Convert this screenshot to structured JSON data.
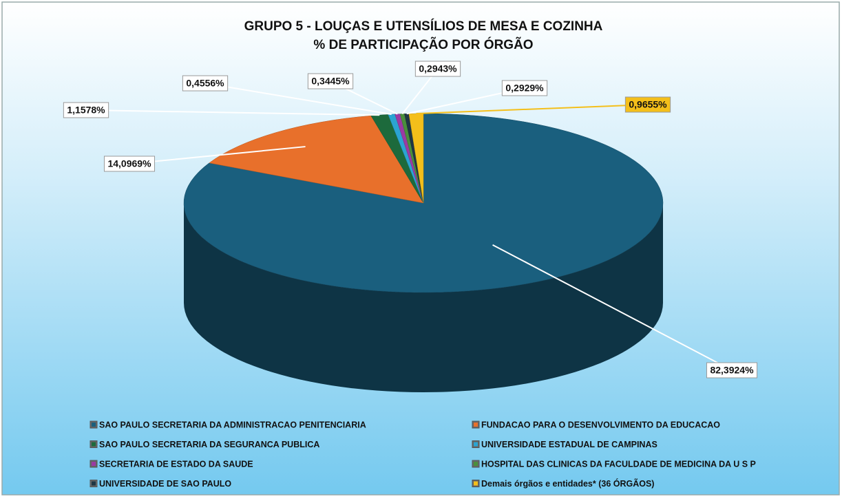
{
  "chart_data": {
    "type": "pie",
    "title": "GRUPO 5 - LOUÇAS E UTENSÍLIOS DE MESA E COZINHA",
    "subtitle": "% DE PARTICIPAÇÃO POR ÓRGÃO",
    "categories": [
      "SAO PAULO SECRETARIA DA ADMINISTRACAO PENITENCIARIA",
      "FUNDACAO PARA O DESENVOLVIMENTO DA EDUCACAO",
      "SAO PAULO SECRETARIA DA SEGURANCA PUBLICA",
      "UNIVERSIDADE ESTADUAL DE CAMPINAS",
      "SECRETARIA DE ESTADO DA SAUDE",
      "HOSPITAL DAS CLINICAS DA FACULDADE DE MEDICINA DA U S P",
      "UNIVERSIDADE DE SAO PAULO",
      "Demais órgãos e entidades* (36 ÓRGÃOS)"
    ],
    "values": [
      82.3924,
      14.0969,
      1.1578,
      0.4556,
      0.3445,
      0.2943,
      0.2929,
      0.9655
    ],
    "value_labels": [
      "82,3924%",
      "14,0969%",
      "1,1578%",
      "0,4556%",
      "0,3445%",
      "0,2943%",
      "0,2929%",
      "0,9655%"
    ],
    "colors": [
      "#1a5f7e",
      "#e8702b",
      "#1d6a3c",
      "#2ba4d2",
      "#9b3aa3",
      "#4a8f3c",
      "#1f3644",
      "#f4bf1a"
    ],
    "legend": "bottom"
  }
}
